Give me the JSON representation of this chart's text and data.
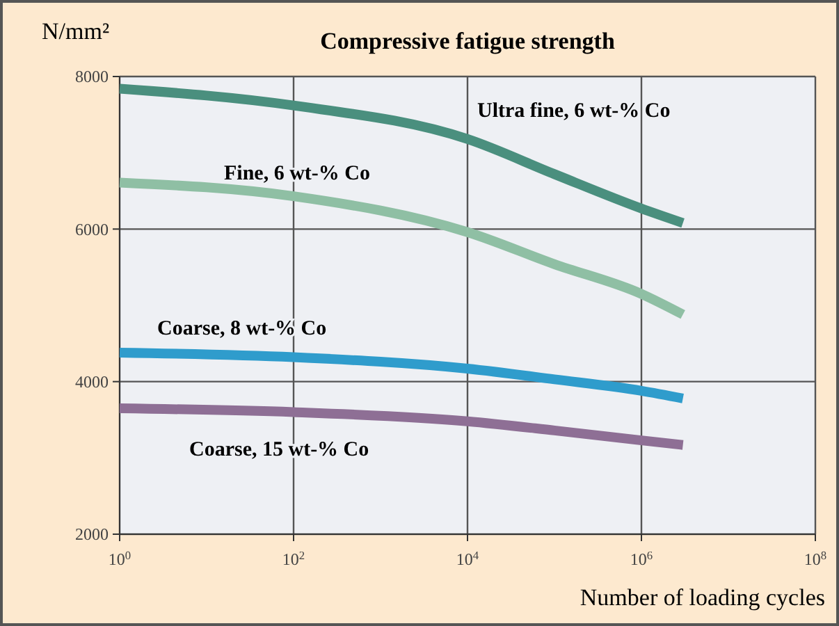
{
  "chart_data": {
    "type": "line",
    "title": "Compressive fatigue strength",
    "ylabel": "N/mm²",
    "xlabel": "Number of loading cycles",
    "log": "x",
    "grid": true,
    "legend": false,
    "marker": "none",
    "line_style": "solid",
    "xlim": [
      1,
      100000000
    ],
    "xticks": [
      {
        "value": 1,
        "label": "10$^{0}$"
      },
      {
        "value": 100,
        "label": "10$^{2}$"
      },
      {
        "value": 10000,
        "label": "10$^{4}$"
      },
      {
        "value": 1000000,
        "label": "10$^{6}$"
      },
      {
        "value": 100000000,
        "label": "10$^{8}$"
      }
    ],
    "ylim": [
      2000,
      8000
    ],
    "yticks": [
      2000,
      4000,
      6000,
      8000
    ],
    "x": [
      1,
      100,
      10000,
      100000,
      1000000,
      3000000
    ],
    "series": [
      {
        "name": "Ultra fine, 6 wt-% Co",
        "color": "#4a8f7e",
        "values": [
          7840,
          7620,
          7180,
          6720,
          6270,
          6080
        ]
      },
      {
        "name": "Fine, 6 wt-% Co",
        "color": "#8fbfa4",
        "values": [
          6610,
          6430,
          5960,
          5540,
          5150,
          4880
        ]
      },
      {
        "name": "Coarse, 8 wt-% Co",
        "color": "#2f9ccc",
        "values": [
          4380,
          4320,
          4170,
          4030,
          3880,
          3780
        ]
      },
      {
        "name": "Coarse, 15 wt-% Co",
        "color": "#8e6f95",
        "values": [
          3650,
          3600,
          3480,
          3360,
          3230,
          3170
        ]
      }
    ]
  }
}
